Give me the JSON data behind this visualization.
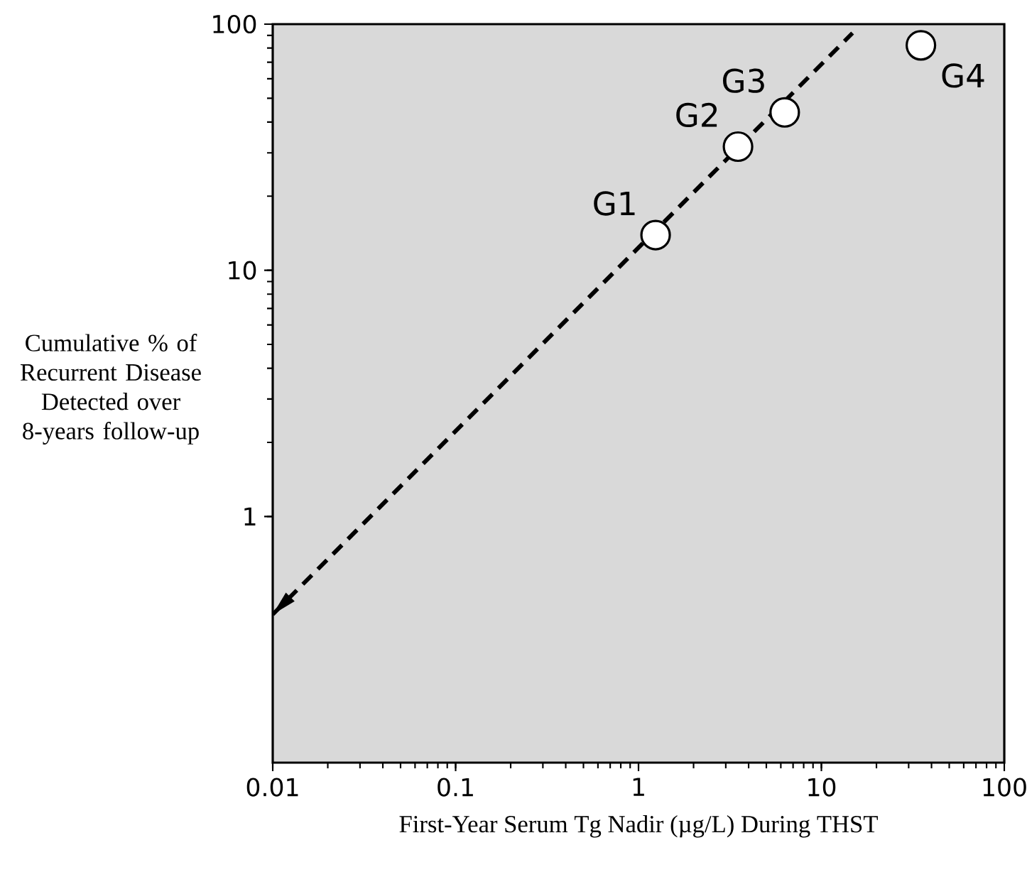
{
  "chart_data": {
    "type": "scatter",
    "xlabel": "First-Year Serum Tg Nadir (µg/L) During THST",
    "ylabel": "Cumulative % of Recurrent Disease Detected over 8-years follow-up",
    "log": "xy",
    "xlim": [
      0.01,
      100
    ],
    "ylim": [
      0.1,
      100
    ],
    "xticks": [
      0.01,
      0.1,
      1,
      10,
      100
    ],
    "yticks": [
      1,
      10,
      100
    ],
    "series": [
      {
        "color": "#ffffff",
        "marker": "circle",
        "x": [
          1.24,
          3.5,
          6.3,
          35
        ],
        "values": [
          13.9,
          31.8,
          43.8,
          82
        ]
      },
      {
        "type": "line",
        "line_style": "dashed",
        "color": "#000000",
        "x": [
          0.01,
          14.8
        ],
        "values": [
          0.4,
          92
        ]
      }
    ],
    "annotations": [
      {
        "text": "G1",
        "x": 1.24,
        "y": 13.9
      },
      {
        "text": "G2",
        "x": 3.5,
        "y": 31.8
      },
      {
        "text": "G3",
        "x": 6.3,
        "y": 43.8
      },
      {
        "text": "G4",
        "x": 35,
        "y": 82
      }
    ]
  }
}
